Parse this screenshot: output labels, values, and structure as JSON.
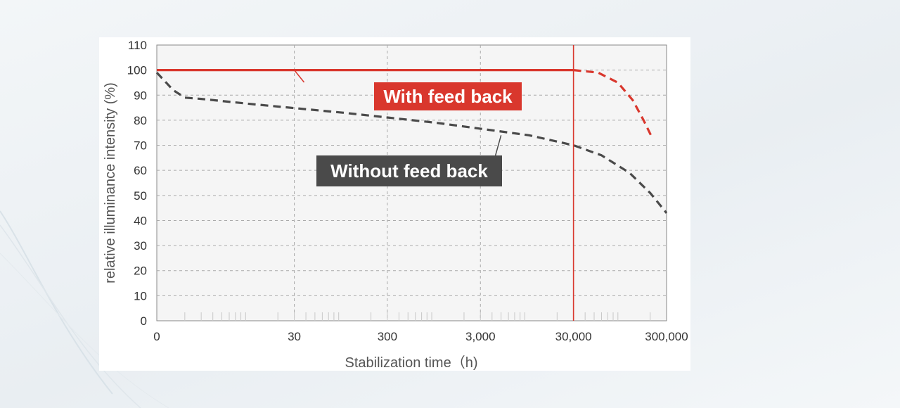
{
  "chart_data": {
    "type": "line",
    "xlabel": "Stabilization time（h)",
    "ylabel": "relative illuminance intensity (%)",
    "x_scale": "log",
    "x_ticks": [
      {
        "value": 1,
        "label": "0"
      },
      {
        "value": 30,
        "label": "30"
      },
      {
        "value": 300,
        "label": "300"
      },
      {
        "value": 3000,
        "label": "3,000"
      },
      {
        "value": 30000,
        "label": "30,000"
      },
      {
        "value": 300000,
        "label": "300,000"
      }
    ],
    "y_ticks": [
      0,
      10,
      20,
      30,
      40,
      50,
      60,
      70,
      80,
      90,
      100,
      110
    ],
    "xlim": [
      1,
      300000
    ],
    "ylim": [
      0,
      110
    ],
    "grid": true,
    "highlight_x": 30000,
    "series": [
      {
        "name": "With feed back",
        "color": "#d9372d",
        "segments": [
          {
            "style": "solid",
            "x": [
              1,
              30000
            ],
            "y": [
              100,
              100
            ]
          },
          {
            "style": "dashed",
            "x": [
              30000,
              55000,
              90000,
              130000,
              170000,
              210000
            ],
            "y": [
              100,
              99,
              95,
              88,
              80,
              73
            ]
          }
        ]
      },
      {
        "name": "Without feed back",
        "color": "#4a4a4a",
        "segments": [
          {
            "style": "dashed",
            "x": [
              1,
              1.5,
              2,
              3,
              10,
              100,
              1000,
              10000,
              30000,
              60000,
              120000,
              200000,
              300000
            ],
            "y": [
              99,
              92,
              89,
              88.5,
              86.5,
              83,
              79,
              74,
              70,
              66,
              59,
              51,
              43
            ]
          }
        ]
      }
    ],
    "annotations": [
      {
        "text": "With feed back",
        "color": "#d9372d",
        "text_color": "#ffffff",
        "pointer": {
          "x": 30,
          "y": 100
        }
      },
      {
        "text": "Without feed back",
        "color": "#4a4a4a",
        "text_color": "#ffffff",
        "pointer": {
          "x": 5000,
          "y": 74
        }
      }
    ],
    "highlight_tick_color": "#b23a33"
  }
}
